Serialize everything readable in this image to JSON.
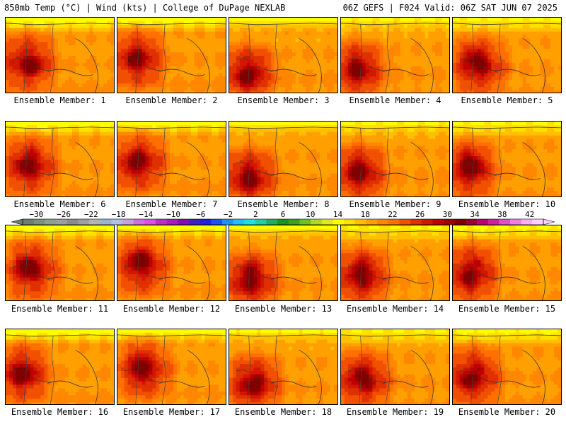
{
  "header": {
    "left": "850mb Temp (°C) | Wind (kts) | College of DuPage NEXLAB",
    "right": "06Z GEFS | F024 Valid: 06Z SAT JUN 07 2025"
  },
  "panel_label_prefix": "Ensemble Member: ",
  "members": [
    {
      "id": 1,
      "label": "1"
    },
    {
      "id": 2,
      "label": "2"
    },
    {
      "id": 3,
      "label": "3"
    },
    {
      "id": 4,
      "label": "4"
    },
    {
      "id": 5,
      "label": "5"
    },
    {
      "id": 6,
      "label": "6"
    },
    {
      "id": 7,
      "label": "7"
    },
    {
      "id": 8,
      "label": "8"
    },
    {
      "id": 9,
      "label": "9"
    },
    {
      "id": 10,
      "label": "10"
    },
    {
      "id": 11,
      "label": "11"
    },
    {
      "id": 12,
      "label": "12"
    },
    {
      "id": 13,
      "label": "13"
    },
    {
      "id": 14,
      "label": "14"
    },
    {
      "id": 15,
      "label": "15"
    },
    {
      "id": 16,
      "label": "16"
    },
    {
      "id": 17,
      "label": "17"
    },
    {
      "id": 18,
      "label": "18"
    },
    {
      "id": 19,
      "label": "19"
    },
    {
      "id": 20,
      "label": "20"
    }
  ],
  "colorbar": {
    "min": -32,
    "max": 44,
    "tick_labels": [
      "−30",
      "−26",
      "−22",
      "−18",
      "−14",
      "−10",
      "−6",
      "−2",
      "2",
      "6",
      "10",
      "14",
      "18",
      "22",
      "26",
      "30",
      "34",
      "38",
      "42"
    ],
    "tick_values": [
      -30,
      -26,
      -22,
      -18,
      -14,
      -10,
      -6,
      -2,
      2,
      6,
      10,
      14,
      18,
      22,
      26,
      30,
      34,
      38,
      42
    ],
    "colors": [
      "#6f7f6f",
      "#7f907f",
      "#8fa08f",
      "#9aa09a",
      "#8c8c8c",
      "#a0a0a0",
      "#b4b4b4",
      "#9ab4cc",
      "#b0c0e0",
      "#c8a0e0",
      "#d070e0",
      "#e050e0",
      "#c030c0",
      "#a020c0",
      "#8010b0",
      "#4020c0",
      "#2020e0",
      "#2050f0",
      "#2090f0",
      "#20c0f0",
      "#20e0e0",
      "#20d0a0",
      "#20b060",
      "#209020",
      "#40a020",
      "#70c020",
      "#b0d820",
      "#e0e820",
      "#ffff00",
      "#ffe000",
      "#ffc000",
      "#ffa000",
      "#ff8800",
      "#ff7000",
      "#f05000",
      "#e03000",
      "#d01800",
      "#c00000",
      "#a00000",
      "#800000",
      "#a00030",
      "#c00070",
      "#d020a0",
      "#e050c0",
      "#f080e0",
      "#ffb0f0",
      "#ffd0ff"
    ]
  },
  "style": {
    "temp_colors": [
      "#ffff00",
      "#ffe000",
      "#ffc000",
      "#ffa000",
      "#ff8800",
      "#ff7000",
      "#f05000",
      "#e03000",
      "#d01800",
      "#c00000",
      "#a00000",
      "#800000"
    ]
  }
}
